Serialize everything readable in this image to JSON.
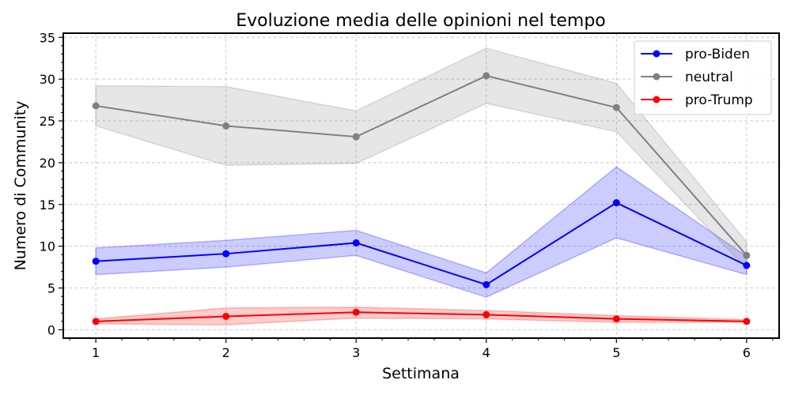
{
  "chart_data": {
    "type": "line",
    "title": "Evoluzione media delle opinioni nel tempo",
    "xlabel": "Settimana",
    "ylabel": "Numero di Community",
    "x": [
      1,
      2,
      3,
      4,
      5,
      6
    ],
    "xlim": [
      0.75,
      6.25
    ],
    "ylim": [
      -1,
      35.5
    ],
    "xticks": [
      "1",
      "2",
      "3",
      "4",
      "5",
      "6"
    ],
    "yticks": [
      "0",
      "5",
      "10",
      "15",
      "20",
      "25",
      "30",
      "35"
    ],
    "grid": true,
    "legend_position": "top-right",
    "series": [
      {
        "name": "pro-Biden",
        "color": "#0000ff",
        "values": [
          8.2,
          9.1,
          10.4,
          5.4,
          15.2,
          7.7
        ],
        "band_lower": [
          6.6,
          7.5,
          8.9,
          3.9,
          11.0,
          6.6
        ],
        "band_upper": [
          9.8,
          10.7,
          11.9,
          6.8,
          19.5,
          8.8
        ]
      },
      {
        "name": "neutral",
        "color": "#808080",
        "values": [
          26.8,
          24.4,
          23.1,
          30.4,
          26.6,
          8.9
        ],
        "band_lower": [
          24.4,
          19.7,
          19.9,
          27.1,
          23.7,
          7.3
        ],
        "band_upper": [
          29.2,
          29.1,
          26.2,
          33.7,
          29.5,
          10.5
        ]
      },
      {
        "name": "pro-Trump",
        "color": "#ff0000",
        "values": [
          1.0,
          1.6,
          2.1,
          1.8,
          1.3,
          1.0
        ],
        "band_lower": [
          0.7,
          0.6,
          1.4,
          1.3,
          0.9,
          0.9
        ],
        "band_upper": [
          1.3,
          2.6,
          2.7,
          2.3,
          1.7,
          1.2
        ]
      }
    ]
  }
}
